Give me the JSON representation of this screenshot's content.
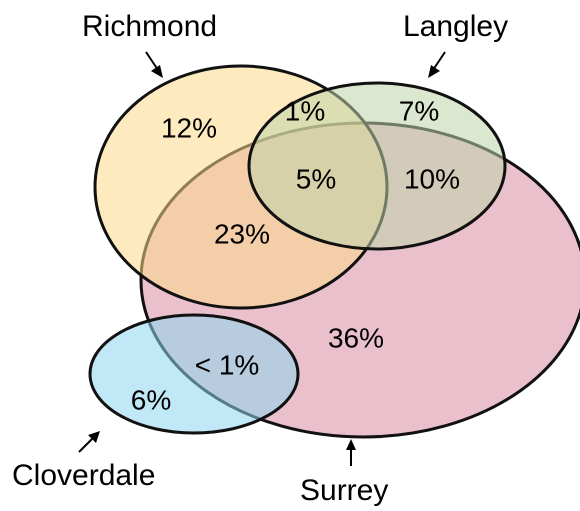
{
  "sets": [
    {
      "id": "richmond",
      "label": "Richmond",
      "color": "#FCD88A"
    },
    {
      "id": "langley",
      "label": "Langley",
      "color": "#BFD3A9"
    },
    {
      "id": "surrey",
      "label": "Surrey",
      "color": "#D98DA2"
    },
    {
      "id": "cloverdale",
      "label": "Cloverdale",
      "color": "#8ED6EE"
    }
  ],
  "regions": {
    "richmond_only": "12%",
    "richmond_langley": "1%",
    "langley_only": "7%",
    "all_three": "5%",
    "langley_surrey": "10%",
    "richmond_surrey": "23%",
    "surrey_only": "36%",
    "cloverdale_surrey": "< 1%",
    "cloverdale_only": "6%"
  }
}
